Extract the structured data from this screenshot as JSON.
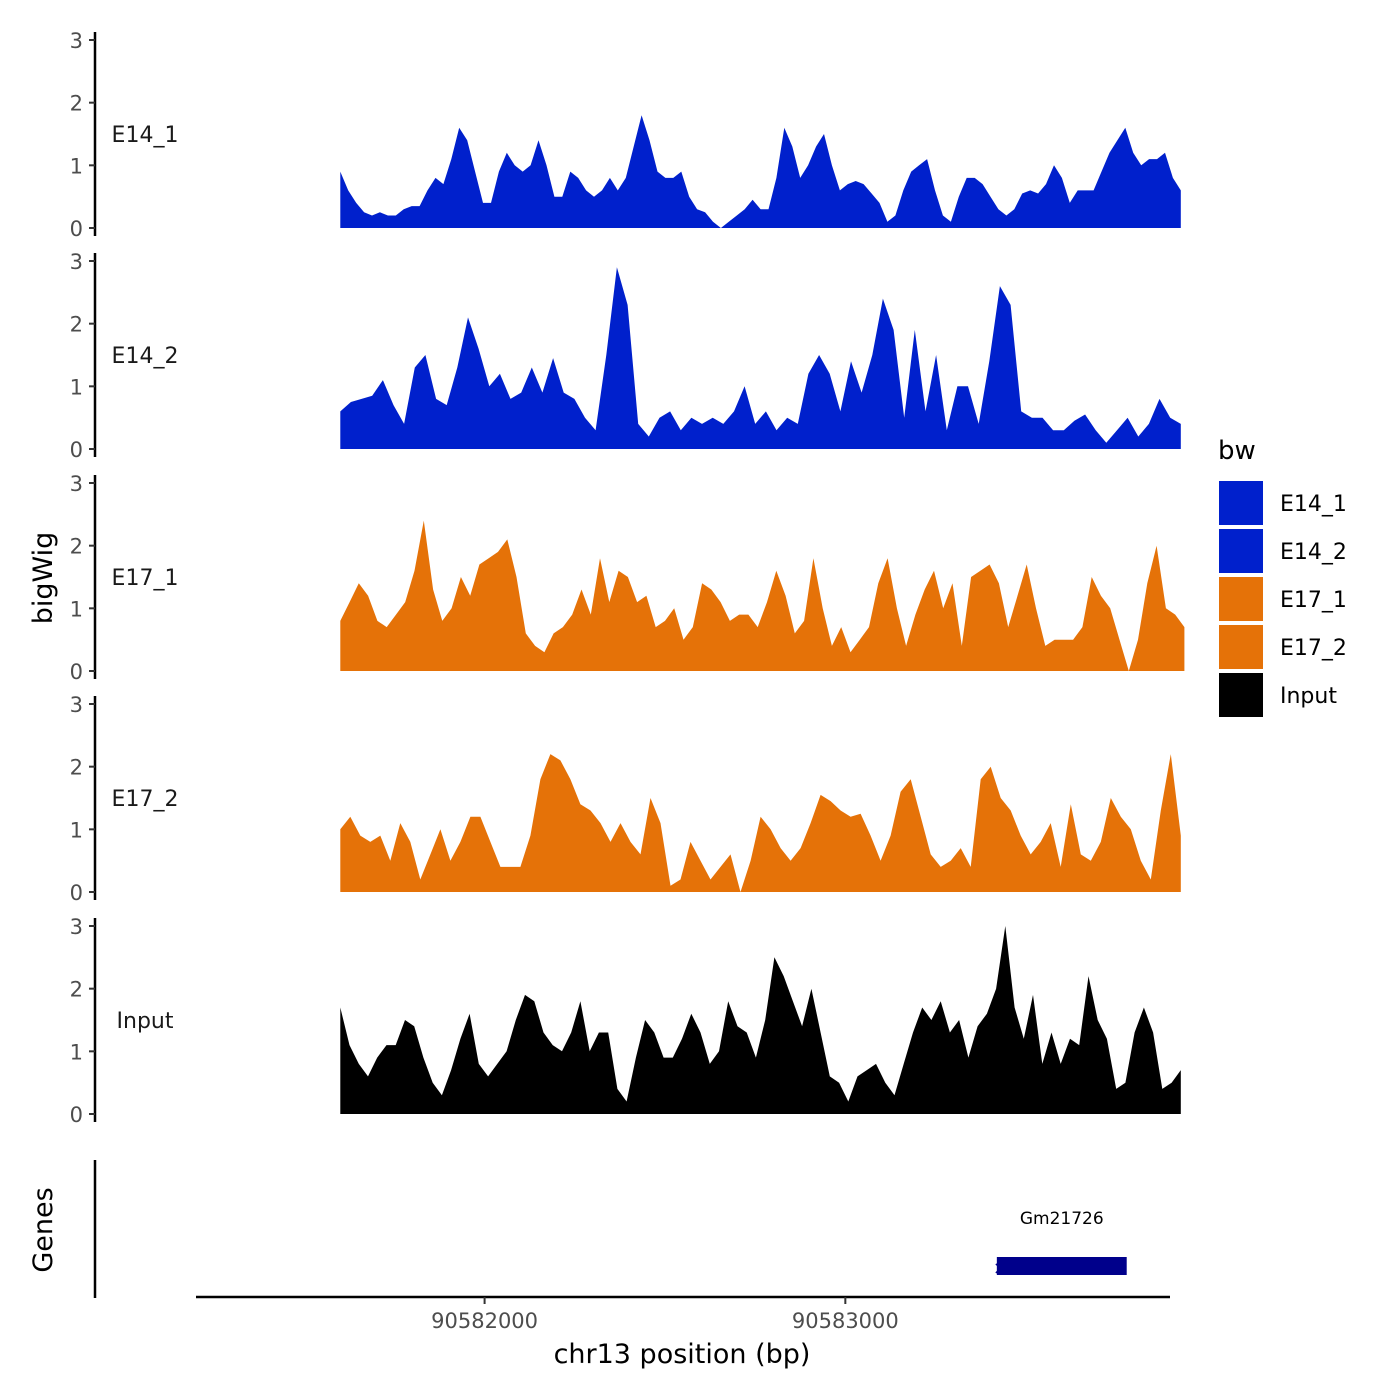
{
  "chart_data": {
    "type": "area",
    "ylabel": "bigWig",
    "xlabel": "chr13 position (bp)",
    "ylim": [
      0,
      3
    ],
    "y_ticks": [
      0,
      1,
      2,
      3
    ],
    "xlim": [
      90581200,
      90583900
    ],
    "x_ticks": [
      90582000,
      90583000
    ],
    "x_tick_labels": [
      "90582000",
      "90583000"
    ],
    "legend": {
      "title": "bw",
      "entries": [
        {
          "name": "E14_1",
          "color": "#0020CC"
        },
        {
          "name": "E14_2",
          "color": "#0020CC"
        },
        {
          "name": "E17_1",
          "color": "#E57208"
        },
        {
          "name": "E17_2",
          "color": "#E57208"
        },
        {
          "name": "Input",
          "color": "#000000"
        }
      ]
    },
    "tracks": [
      {
        "name": "E14_1",
        "color": "#0020CC",
        "x_start": 90581600,
        "x_end": 90583930,
        "values": [
          0.9,
          0.6,
          0.4,
          0.25,
          0.2,
          0.25,
          0.2,
          0.2,
          0.3,
          0.35,
          0.35,
          0.6,
          0.8,
          0.7,
          1.1,
          1.6,
          1.4,
          0.9,
          0.4,
          0.4,
          0.9,
          1.2,
          1.0,
          0.9,
          1.0,
          1.4,
          1.0,
          0.5,
          0.5,
          0.9,
          0.8,
          0.6,
          0.5,
          0.6,
          0.8,
          0.6,
          0.8,
          1.3,
          1.8,
          1.4,
          0.9,
          0.8,
          0.8,
          0.9,
          0.5,
          0.3,
          0.25,
          0.1,
          0.0,
          0.1,
          0.2,
          0.3,
          0.45,
          0.3,
          0.3,
          0.8,
          1.6,
          1.3,
          0.8,
          1.0,
          1.3,
          1.5,
          1.0,
          0.6,
          0.7,
          0.75,
          0.7,
          0.55,
          0.4,
          0.1,
          0.2,
          0.6,
          0.9,
          1.0,
          1.1,
          0.6,
          0.2,
          0.1,
          0.5,
          0.8,
          0.8,
          0.7,
          0.5,
          0.3,
          0.2,
          0.3,
          0.55,
          0.6,
          0.55,
          0.7,
          1.0,
          0.8,
          0.4,
          0.6,
          0.6,
          0.6,
          0.9,
          1.2,
          1.4,
          1.6,
          1.2,
          1.0,
          1.1,
          1.1,
          1.2,
          0.8,
          0.6
        ]
      },
      {
        "name": "E14_2",
        "color": "#0020CC",
        "x_start": 90581600,
        "x_end": 90583930,
        "values": [
          0.6,
          0.75,
          0.8,
          0.85,
          1.1,
          0.7,
          0.4,
          1.3,
          1.5,
          0.8,
          0.7,
          1.3,
          2.1,
          1.6,
          1.0,
          1.2,
          0.8,
          0.9,
          1.3,
          0.9,
          1.45,
          0.9,
          0.8,
          0.5,
          0.3,
          1.5,
          2.9,
          2.3,
          0.4,
          0.2,
          0.5,
          0.6,
          0.3,
          0.5,
          0.4,
          0.5,
          0.4,
          0.6,
          1.0,
          0.4,
          0.6,
          0.3,
          0.5,
          0.4,
          1.2,
          1.5,
          1.2,
          0.6,
          1.4,
          0.9,
          1.5,
          2.4,
          1.9,
          0.5,
          1.9,
          0.6,
          1.5,
          0.3,
          1.0,
          1.0,
          0.4,
          1.4,
          2.6,
          2.3,
          0.6,
          0.5,
          0.5,
          0.3,
          0.3,
          0.45,
          0.55,
          0.3,
          0.1,
          0.3,
          0.5,
          0.2,
          0.4,
          0.8,
          0.5,
          0.4
        ]
      },
      {
        "name": "E17_1",
        "color": "#E57208",
        "x_start": 90581600,
        "x_end": 90583940,
        "values": [
          0.8,
          1.1,
          1.4,
          1.2,
          0.8,
          0.7,
          0.9,
          1.1,
          1.6,
          2.4,
          1.3,
          0.8,
          1.0,
          1.5,
          1.2,
          1.7,
          1.8,
          1.9,
          2.1,
          1.5,
          0.6,
          0.4,
          0.3,
          0.6,
          0.7,
          0.9,
          1.3,
          0.9,
          1.8,
          1.1,
          1.6,
          1.5,
          1.1,
          1.2,
          0.7,
          0.8,
          1.0,
          0.5,
          0.7,
          1.4,
          1.3,
          1.1,
          0.8,
          0.9,
          0.9,
          0.7,
          1.1,
          1.6,
          1.2,
          0.6,
          0.8,
          1.8,
          1.0,
          0.4,
          0.7,
          0.3,
          0.5,
          0.7,
          1.4,
          1.8,
          1.0,
          0.4,
          0.9,
          1.3,
          1.6,
          1.0,
          1.4,
          0.4,
          1.5,
          1.6,
          1.7,
          1.4,
          0.7,
          1.2,
          1.7,
          1.0,
          0.4,
          0.5,
          0.5,
          0.5,
          0.7,
          1.5,
          1.2,
          1.0,
          0.5,
          0.0,
          0.5,
          1.4,
          2.0,
          1.0,
          0.9,
          0.7
        ]
      },
      {
        "name": "E17_2",
        "color": "#E57208",
        "x_start": 90581600,
        "x_end": 90583930,
        "values": [
          1.0,
          1.2,
          0.9,
          0.8,
          0.9,
          0.5,
          1.1,
          0.8,
          0.2,
          0.6,
          1.0,
          0.5,
          0.8,
          1.2,
          1.2,
          0.8,
          0.4,
          0.4,
          0.4,
          0.9,
          1.8,
          2.2,
          2.1,
          1.8,
          1.4,
          1.3,
          1.1,
          0.8,
          1.1,
          0.8,
          0.6,
          1.5,
          1.1,
          0.1,
          0.2,
          0.8,
          0.5,
          0.2,
          0.4,
          0.6,
          0.0,
          0.5,
          1.2,
          1.0,
          0.7,
          0.5,
          0.7,
          1.1,
          1.55,
          1.45,
          1.3,
          1.2,
          1.25,
          0.9,
          0.5,
          0.9,
          1.6,
          1.8,
          1.2,
          0.6,
          0.4,
          0.5,
          0.7,
          0.4,
          1.8,
          2.0,
          1.5,
          1.3,
          0.9,
          0.6,
          0.8,
          1.1,
          0.4,
          1.4,
          0.6,
          0.5,
          0.8,
          1.5,
          1.2,
          1.0,
          0.5,
          0.2,
          1.3,
          2.2,
          0.9
        ]
      },
      {
        "name": "Input",
        "color": "#000000",
        "x_start": 90581600,
        "x_end": 90583930,
        "values": [
          1.7,
          1.1,
          0.8,
          0.6,
          0.9,
          1.1,
          1.1,
          1.5,
          1.4,
          0.9,
          0.5,
          0.3,
          0.7,
          1.2,
          1.6,
          0.8,
          0.6,
          0.8,
          1.0,
          1.5,
          1.9,
          1.8,
          1.3,
          1.1,
          1.0,
          1.3,
          1.8,
          1.0,
          1.3,
          1.3,
          0.4,
          0.2,
          0.9,
          1.5,
          1.3,
          0.9,
          0.9,
          1.2,
          1.6,
          1.3,
          0.8,
          1.0,
          1.8,
          1.4,
          1.3,
          0.9,
          1.5,
          2.5,
          2.2,
          1.8,
          1.4,
          2.0,
          1.3,
          0.6,
          0.5,
          0.2,
          0.6,
          0.7,
          0.8,
          0.5,
          0.3,
          0.8,
          1.3,
          1.7,
          1.5,
          1.8,
          1.3,
          1.5,
          0.9,
          1.4,
          1.6,
          2.0,
          3.0,
          1.7,
          1.2,
          1.9,
          0.8,
          1.3,
          0.8,
          1.2,
          1.1,
          2.2,
          1.5,
          1.2,
          0.4,
          0.5,
          1.3,
          1.7,
          1.3,
          0.4,
          0.5,
          0.7
        ]
      }
    ],
    "genes_track": {
      "label": "Genes",
      "genes": [
        {
          "name": "Gm21726",
          "start": 90583420,
          "end": 90583780,
          "strand": "-",
          "color": "#00008B"
        }
      ]
    }
  }
}
